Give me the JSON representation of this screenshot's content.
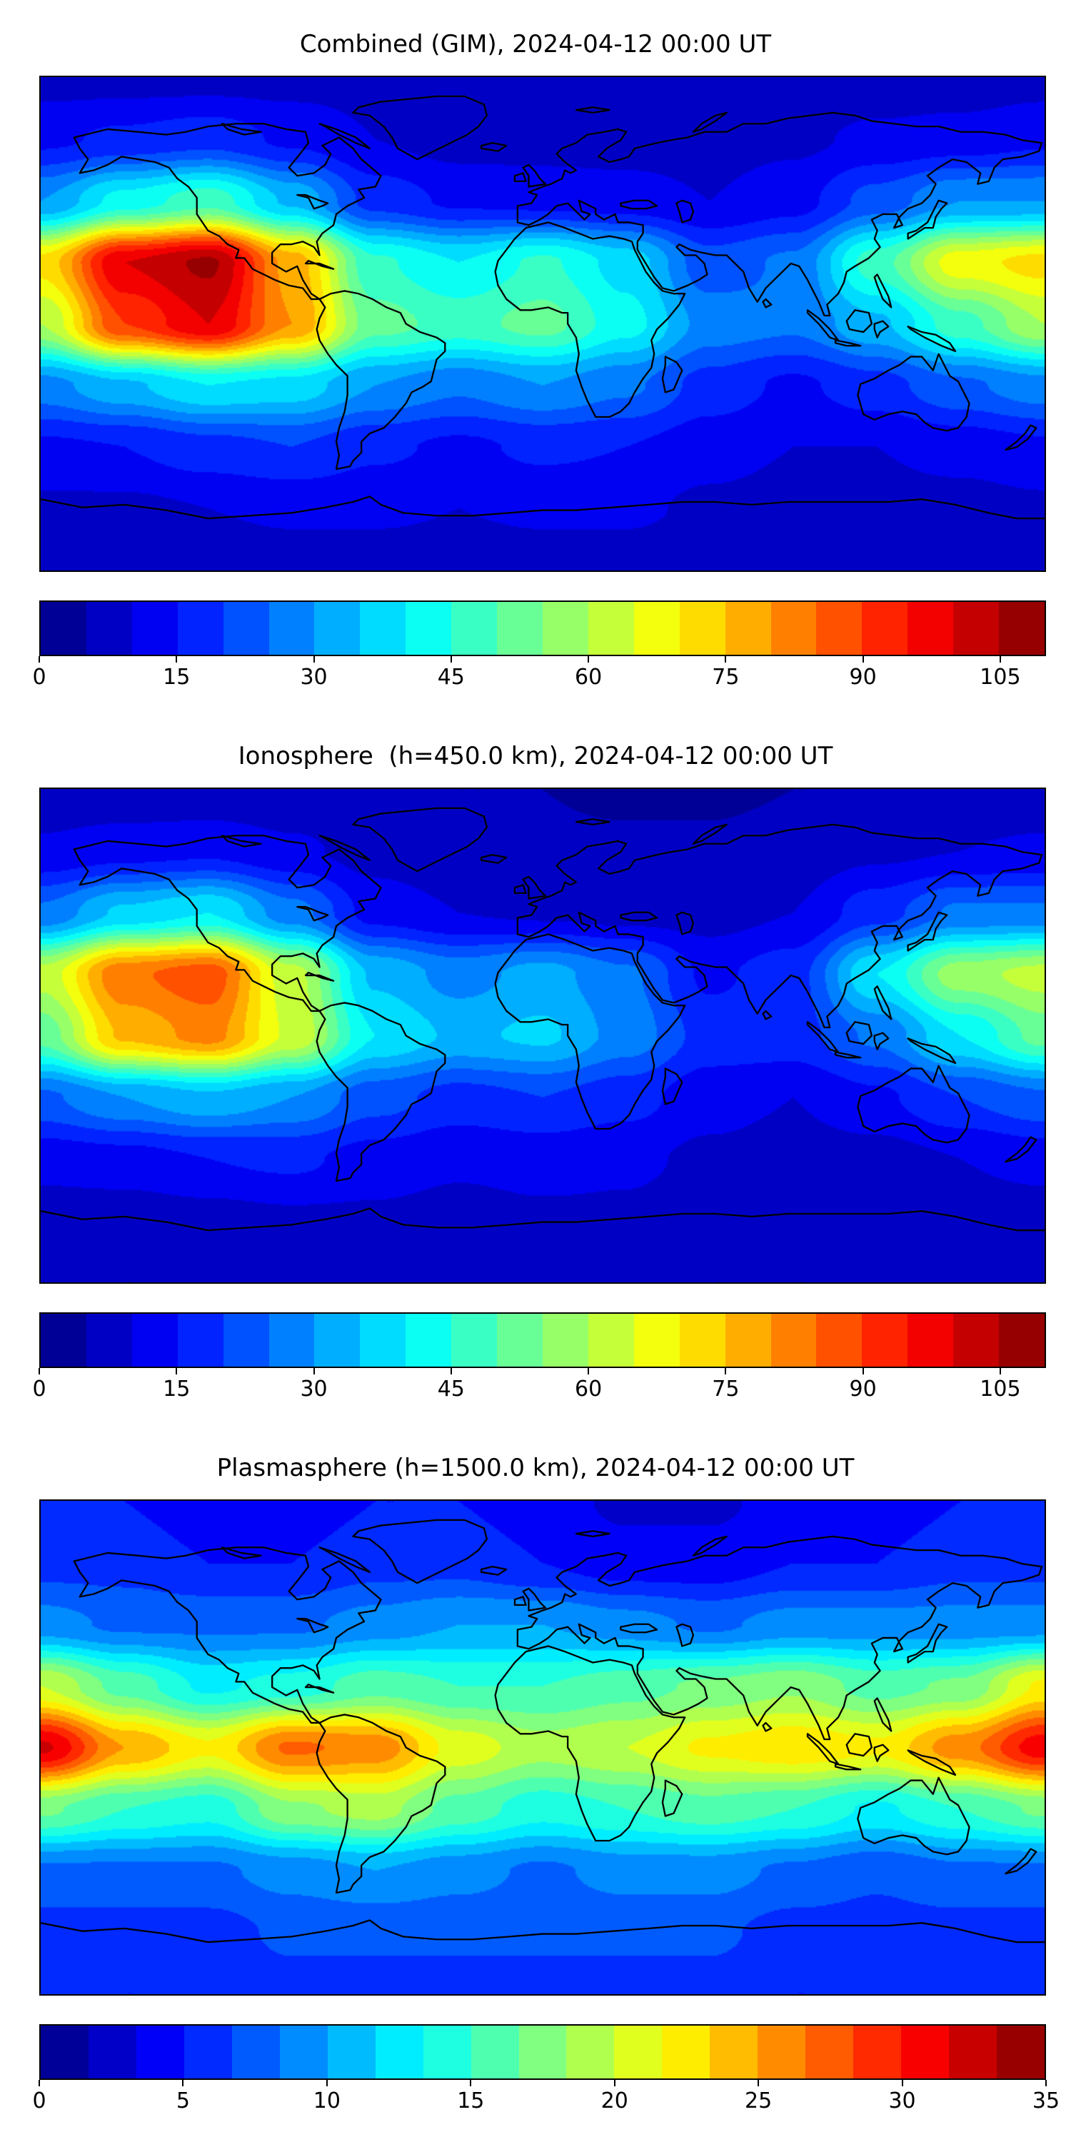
{
  "figure": {
    "background": "#ffffff",
    "text_color": "#000000"
  },
  "chart_data": [
    {
      "type": "heatmap",
      "title": "Combined (GIM), 2024-04-12 00:00 UT",
      "map_style": "global equirectangular map with black coastlines, filled contours",
      "colormap": "jet",
      "colorbar": {
        "orientation": "horizontal",
        "vmin": 0,
        "vmax": 110,
        "n_segments": 22,
        "ticks": [
          0,
          15,
          30,
          45,
          60,
          75,
          90,
          105
        ]
      },
      "grid": {
        "lon": [
          -180,
          -150,
          -120,
          -90,
          -60,
          -30,
          0,
          30,
          60,
          90,
          120,
          150,
          180
        ],
        "lat": [
          90,
          67.5,
          45,
          22.5,
          0,
          -22.5,
          -45,
          -67.5,
          -90
        ],
        "values": [
          [
            8,
            8,
            8,
            8,
            8,
            7,
            6,
            6,
            6,
            6,
            7,
            7,
            8
          ],
          [
            14,
            16,
            18,
            14,
            10,
            8,
            8,
            8,
            8,
            9,
            11,
            12,
            14
          ],
          [
            30,
            42,
            48,
            34,
            18,
            14,
            13,
            12,
            10,
            13,
            22,
            30,
            30
          ],
          [
            72,
            100,
            106,
            78,
            46,
            40,
            46,
            38,
            22,
            26,
            48,
            68,
            72
          ],
          [
            60,
            90,
            100,
            80,
            52,
            48,
            52,
            42,
            28,
            26,
            34,
            48,
            60
          ],
          [
            28,
            34,
            40,
            38,
            30,
            26,
            30,
            26,
            18,
            14,
            18,
            24,
            28
          ],
          [
            14,
            15,
            18,
            20,
            16,
            14,
            16,
            15,
            12,
            10,
            10,
            12,
            14
          ],
          [
            9,
            9,
            10,
            11,
            11,
            10,
            11,
            11,
            9,
            8,
            8,
            8,
            9
          ],
          [
            6,
            6,
            6,
            7,
            7,
            7,
            7,
            7,
            6,
            6,
            6,
            6,
            6
          ]
        ]
      }
    },
    {
      "type": "heatmap",
      "title": "Ionosphere  (h=450.0 km), 2024-04-12 00:00 UT",
      "map_style": "global equirectangular map with black coastlines, filled contours",
      "colormap": "jet",
      "colorbar": {
        "orientation": "horizontal",
        "vmin": 0,
        "vmax": 110,
        "n_segments": 22,
        "ticks": [
          0,
          15,
          30,
          45,
          60,
          75,
          90,
          105
        ]
      },
      "grid": {
        "lon": [
          -180,
          -150,
          -120,
          -90,
          -60,
          -30,
          0,
          30,
          60,
          90,
          120,
          150,
          180
        ],
        "lat": [
          90,
          67.5,
          45,
          22.5,
          0,
          -22.5,
          -45,
          -67.5,
          -90
        ],
        "values": [
          [
            6,
            6,
            6,
            6,
            6,
            5,
            5,
            4,
            4,
            5,
            5,
            6,
            6
          ],
          [
            11,
            13,
            14,
            11,
            8,
            6,
            6,
            6,
            6,
            7,
            9,
            10,
            11
          ],
          [
            26,
            36,
            40,
            27,
            13,
            10,
            9,
            8,
            8,
            10,
            18,
            26,
            26
          ],
          [
            62,
            84,
            88,
            62,
            34,
            28,
            32,
            26,
            14,
            18,
            40,
            58,
            62
          ],
          [
            52,
            76,
            82,
            64,
            40,
            34,
            36,
            28,
            18,
            18,
            26,
            40,
            52
          ],
          [
            24,
            30,
            34,
            30,
            22,
            18,
            20,
            17,
            12,
            10,
            14,
            20,
            24
          ],
          [
            12,
            13,
            15,
            16,
            13,
            11,
            12,
            11,
            9,
            8,
            8,
            10,
            12
          ],
          [
            7,
            7,
            8,
            9,
            9,
            8,
            9,
            9,
            7,
            6,
            6,
            7,
            7
          ],
          [
            5,
            5,
            5,
            6,
            6,
            6,
            6,
            6,
            5,
            5,
            5,
            5,
            5
          ]
        ]
      }
    },
    {
      "type": "heatmap",
      "title": "Plasmasphere (h=1500.0 km), 2024-04-12 00:00 UT",
      "map_style": "global equirectangular map with black coastlines, filled contours",
      "colormap": "jet",
      "colorbar": {
        "orientation": "horizontal",
        "vmin": 0,
        "vmax": 35,
        "n_segments": 21,
        "ticks": [
          0,
          5,
          10,
          15,
          20,
          25,
          30,
          35
        ]
      },
      "grid": {
        "lon": [
          -180,
          -150,
          -120,
          -90,
          -60,
          -30,
          0,
          30,
          60,
          90,
          120,
          150,
          180
        ],
        "lat": [
          90,
          67.5,
          45,
          22.5,
          0,
          -22.5,
          -45,
          -67.5,
          -90
        ],
        "values": [
          [
            5,
            5,
            4,
            4,
            5,
            5,
            4,
            3,
            3,
            4,
            4,
            5,
            5
          ],
          [
            6,
            6,
            5,
            5,
            6,
            6,
            5,
            4,
            4,
            5,
            5,
            6,
            6
          ],
          [
            9,
            8,
            8,
            8,
            9,
            10,
            10,
            9,
            8,
            9,
            9,
            9,
            9
          ],
          [
            20,
            16,
            13,
            14,
            16,
            15,
            15,
            16,
            17,
            18,
            16,
            17,
            22
          ],
          [
            32,
            25,
            22,
            27,
            26,
            21,
            19,
            20,
            22,
            23,
            22,
            26,
            31
          ],
          [
            17,
            15,
            14,
            18,
            19,
            16,
            14,
            15,
            16,
            15,
            13,
            15,
            17
          ],
          [
            8,
            8,
            8,
            9,
            10,
            9,
            8,
            9,
            9,
            8,
            7,
            8,
            8
          ],
          [
            6,
            6,
            6,
            7,
            7,
            7,
            7,
            7,
            7,
            6,
            6,
            6,
            6
          ],
          [
            5,
            5,
            5,
            6,
            6,
            6,
            6,
            6,
            6,
            5,
            5,
            5,
            5
          ]
        ]
      }
    }
  ]
}
